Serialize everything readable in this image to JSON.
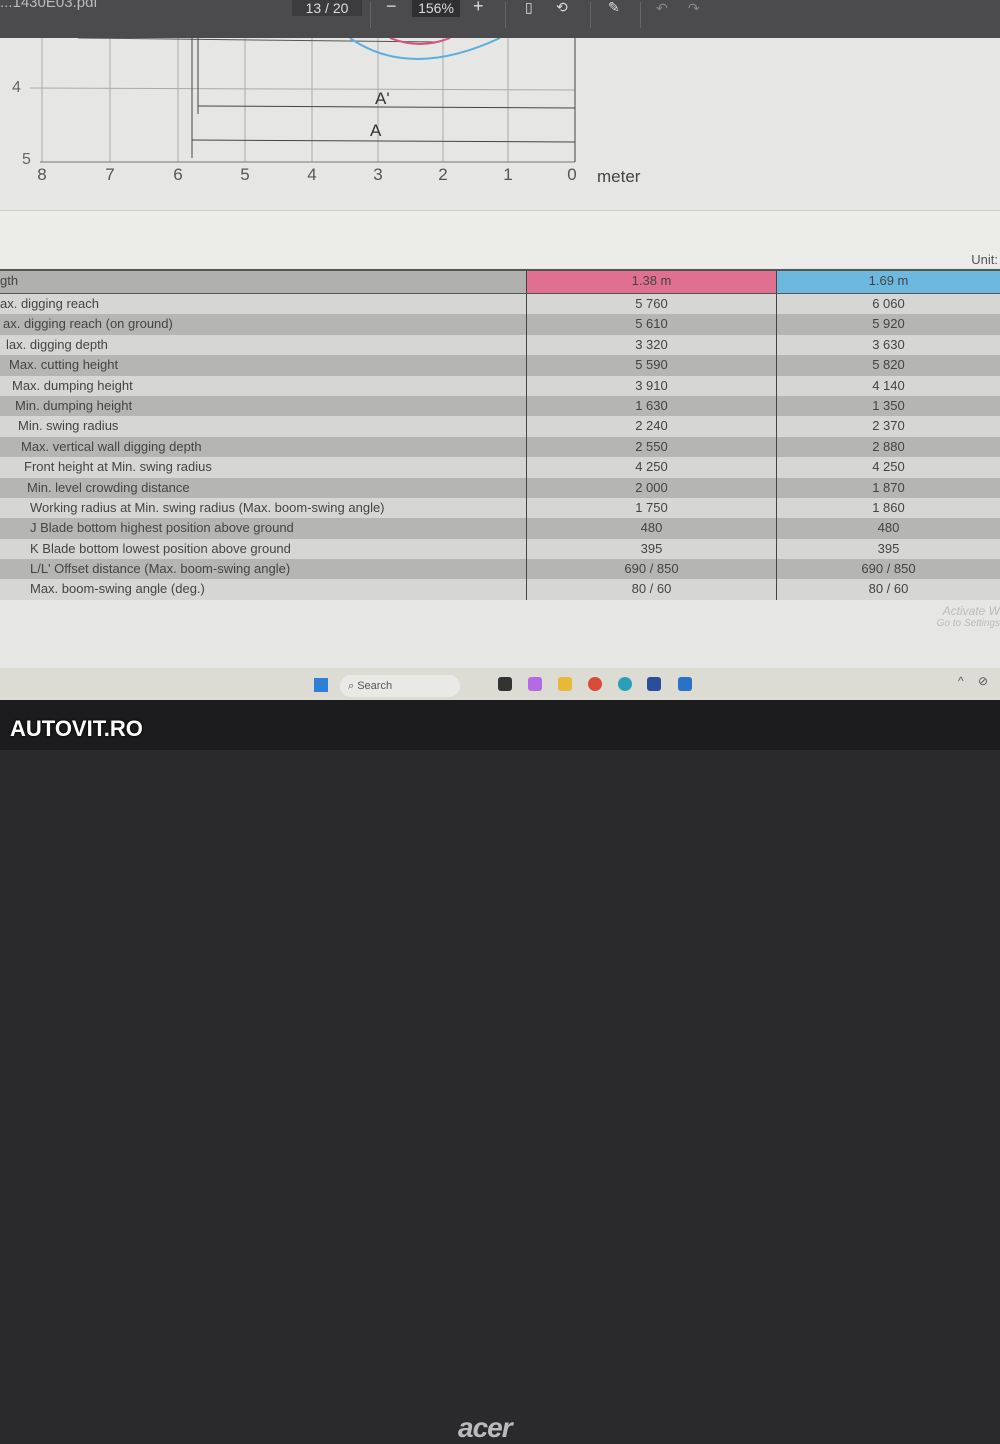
{
  "toolbar": {
    "file_name": "...1430E03.pdf",
    "page_current": "13",
    "page_total": "/ 20",
    "zoom_out": "−",
    "zoom_level": "156%",
    "zoom_in": "+",
    "icons": [
      "page-view-icon",
      "rotate-icon",
      "draw-icon",
      "undo-icon",
      "redo-icon"
    ]
  },
  "diagram": {
    "x_ticks": [
      "8",
      "7",
      "6",
      "5",
      "4",
      "3",
      "2",
      "1",
      "0"
    ],
    "x_unit": "meter",
    "y_ticks": [
      "4",
      "5"
    ],
    "dim_labels": [
      "A'",
      "A"
    ],
    "colors": {
      "arm_short": "#d9507a",
      "arm_long": "#5aaee0"
    }
  },
  "table": {
    "unit_label": "Unit:",
    "header": {
      "label": "gth",
      "col1": "1.38 m",
      "col2": "1.69 m"
    },
    "rows": [
      {
        "label": "ax. digging reach",
        "v1": "5 760",
        "v2": "6 060"
      },
      {
        "label": "ax. digging reach (on ground)",
        "v1": "5 610",
        "v2": "5 920"
      },
      {
        "label": "lax. digging depth",
        "v1": "3 320",
        "v2": "3 630"
      },
      {
        "label": "Max. cutting height",
        "v1": "5 590",
        "v2": "5 820"
      },
      {
        "label": "Max. dumping height",
        "v1": "3 910",
        "v2": "4 140"
      },
      {
        "label": "Min. dumping height",
        "v1": "1 630",
        "v2": "1 350"
      },
      {
        "label": "Min. swing radius",
        "v1": "2 240",
        "v2": "2 370"
      },
      {
        "label": "Max. vertical wall digging depth",
        "v1": "2 550",
        "v2": "2 880"
      },
      {
        "label": "Front height at Min. swing radius",
        "v1": "4 250",
        "v2": "4 250"
      },
      {
        "label": "Min. level crowding distance",
        "v1": "2 000",
        "v2": "1 870"
      },
      {
        "label": "Working radius at Min. swing radius (Max. boom-swing angle)",
        "v1": "1 750",
        "v2": "1 860"
      },
      {
        "label": "J  Blade bottom highest position above ground",
        "v1": "480",
        "v2": "480"
      },
      {
        "label": "K  Blade bottom lowest position above ground",
        "v1": "395",
        "v2": "395"
      },
      {
        "label": "L/L' Offset distance (Max. boom-swing angle)",
        "v1": "690 / 850",
        "v2": "690 / 850"
      },
      {
        "label": "Max. boom-swing angle (deg.)",
        "v1": "80 / 60",
        "v2": "80 / 60"
      }
    ]
  },
  "watermark_os": "Activate W\nGo to Settings",
  "taskbar": {
    "search_placeholder": "Search"
  },
  "bezel": {
    "brand": "acer"
  },
  "photo_watermark": "AUTOVIT.RO"
}
